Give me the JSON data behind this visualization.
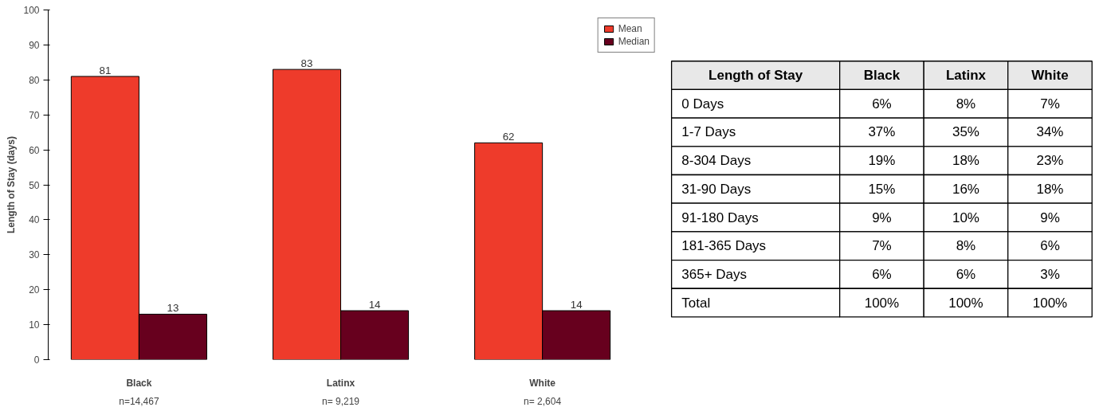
{
  "chart_data": [
    {
      "type": "bar",
      "ylabel": "Length of Stay (days)",
      "categories": [
        "Black",
        "Latinx",
        "White"
      ],
      "series": [
        {
          "name": "Mean",
          "color": "#ee3b2b",
          "values": [
            81,
            83,
            62
          ]
        },
        {
          "name": "Median",
          "color": "#67001e",
          "values": [
            13,
            14,
            14
          ]
        }
      ],
      "ylim": [
        0,
        100
      ],
      "yticks": [
        0,
        10,
        20,
        30,
        40,
        50,
        60,
        70,
        80,
        90,
        100
      ],
      "data_labels": true,
      "grid": false,
      "legend": "top right",
      "annotations": [
        "n=14,467",
        "n= 9,219",
        "n= 2,604"
      ]
    },
    {
      "type": "other",
      "ylabel": "Length of Stay",
      "categories": [
        "Black",
        "Latinx",
        "White"
      ],
      "y_categories": [
        "0 Days",
        "1-7 Days",
        "8-304 Days",
        "31-90 Days",
        "91-180 Days",
        "181-365 Days",
        "365+ Days",
        "Total"
      ],
      "cell_labels": [
        [
          "6%",
          "8%",
          "7%"
        ],
        [
          "37%",
          "35%",
          "34%"
        ],
        [
          "19%",
          "18%",
          "23%"
        ],
        [
          "15%",
          "16%",
          "18%"
        ],
        [
          "9%",
          "10%",
          "9%"
        ],
        [
          "7%",
          "8%",
          "6%"
        ],
        [
          "6%",
          "6%",
          "3%"
        ],
        [
          "100%",
          "100%",
          "100%"
        ]
      ]
    }
  ]
}
